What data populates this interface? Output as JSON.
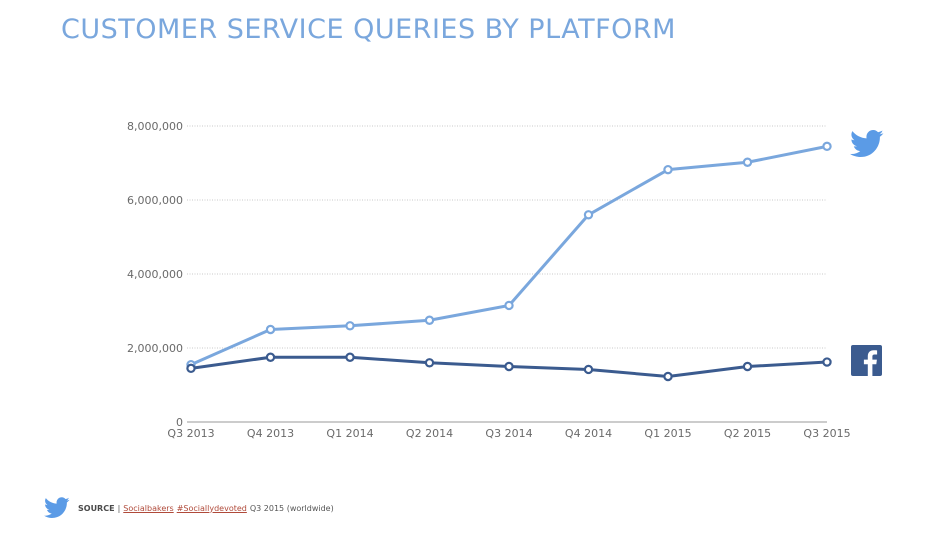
{
  "title": "CUSTOMER SERVICE QUERIES BY PLATFORM",
  "chart_data": {
    "type": "line",
    "title": "CUSTOMER SERVICE QUERIES BY PLATFORM",
    "xlabel": "",
    "ylabel": "",
    "categories": [
      "Q3 2013",
      "Q4 2013",
      "Q1 2014",
      "Q2 2014",
      "Q3 2014",
      "Q4 2014",
      "Q1 2015",
      "Q2 2015",
      "Q3 2015"
    ],
    "ylim": [
      0,
      8000000
    ],
    "yticks": [
      0,
      2000000,
      4000000,
      6000000,
      8000000
    ],
    "ytick_labels": [
      "0",
      "2,000,000",
      "4,000,000",
      "6,000,000",
      "8,000,000"
    ],
    "grid": true,
    "legend": "icons at right end of lines",
    "series": [
      {
        "values": [
          1550000,
          2500000,
          2600000,
          2750000,
          3150000,
          5600000,
          6820000,
          7020000,
          7450000
        ],
        "color": "#7aa7dd",
        "icon": "twitter-bird-icon"
      },
      {
        "values": [
          1450000,
          1750000,
          1750000,
          1600000,
          1500000,
          1420000,
          1230000,
          1500000,
          1620000
        ],
        "color": "#3b5b8f",
        "icon": "facebook-f-icon"
      }
    ]
  },
  "footer": {
    "source_label": "SOURCE",
    "separator": "|",
    "link1": "Socialbakers",
    "link2": "#Sociallydevoted",
    "note": "Q3 2015 (worldwide)",
    "icon": "twitter-bird-icon"
  }
}
